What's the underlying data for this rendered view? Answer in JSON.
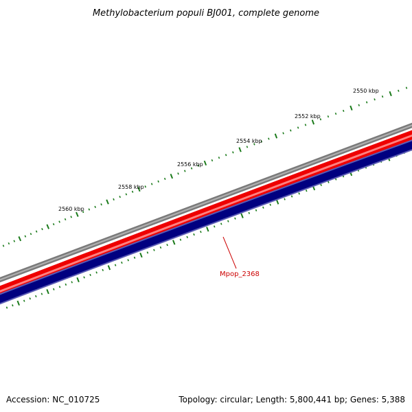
{
  "title": "Methylobacterium populi BJ001, complete genome",
  "footer": {
    "accession": "Accession: NC_010725",
    "summary": "Topology: circular; Length: 5,800,441 bp; Genes: 5,388"
  },
  "tick_labels": [
    {
      "text": "2550 kbp"
    },
    {
      "text": "2552 kbp"
    },
    {
      "text": "2554 kbp"
    },
    {
      "text": "2556 kbp"
    },
    {
      "text": "2558 kbp"
    },
    {
      "text": "2560 kbp"
    }
  ],
  "gene_label": {
    "text": "Mpop_2368"
  },
  "colors": {
    "tick": "#1a7a1a",
    "backbone": "#7a7a7a",
    "forward_strand": "#ee0000",
    "forward_strand_light": "#ff8080",
    "reverse_strand": "#000080",
    "reverse_strand_edge": "#5a5ab4",
    "gene_label": "#cc0000"
  }
}
